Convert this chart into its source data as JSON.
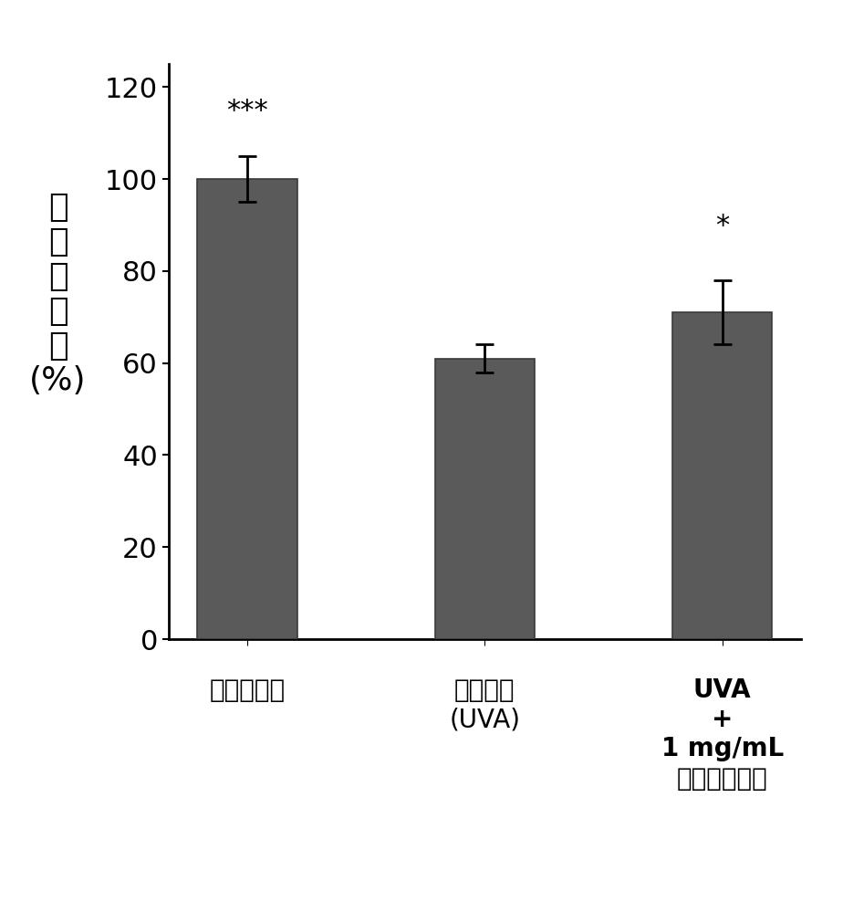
{
  "values": [
    100,
    61,
    71
  ],
  "errors": [
    5,
    3,
    7
  ],
  "bar_color": "#5a5a5a",
  "bar_width": 0.42,
  "ylim": [
    0,
    125
  ],
  "yticks": [
    0,
    20,
    40,
    60,
    80,
    100,
    120
  ],
  "significance": [
    "***",
    "",
    "*"
  ],
  "sig_fontsize": 22,
  "tick_fontsize": 22,
  "ylabel_fontsize": 26,
  "xlabel_fontsize": 20,
  "background_color": "#ffffff",
  "bar_edge_color": "#3a3a3a",
  "error_cap_size": 7,
  "error_linewidth": 2.0,
  "sig_offsets": [
    7,
    0,
    9
  ],
  "xlabel_label1": "空白对照组",
  "xlabel_label2_l1": "负控制组",
  "xlabel_label2_l2": "(UVA)",
  "xlabel_label3_l1": "UVA",
  "xlabel_label3_l2": "+",
  "xlabel_label3_l3": "1 mg/mL",
  "xlabel_label3_l4": "特纳卡萝取物",
  "ylabel_l1": "细",
  "ylabel_l2": "胞",
  "ylabel_l3": "存",
  "ylabel_l4": "活",
  "ylabel_l5": "率",
  "ylabel_l6": "(%)"
}
